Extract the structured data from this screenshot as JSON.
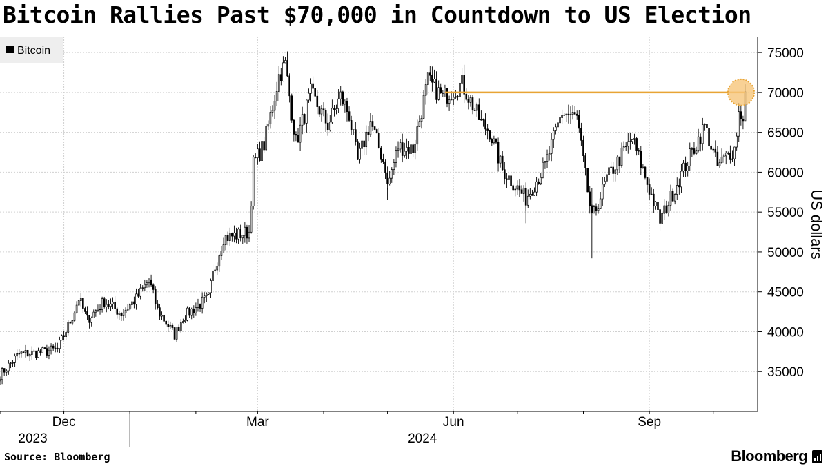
{
  "chart_data": {
    "type": "candlestick",
    "title": "Bitcoin Rallies Past $70,000 in Countdown to US Election",
    "legend": [
      "Bitcoin"
    ],
    "legend_placement": "top-left",
    "ylabel": "US dollars",
    "ylim": [
      30000,
      77000
    ],
    "yticks": [
      35000,
      40000,
      45000,
      50000,
      55000,
      60000,
      65000,
      70000,
      75000
    ],
    "y_axis_position": "right",
    "grid": true,
    "x_range": [
      "2023-11-01",
      "2024-10-16"
    ],
    "x_major_ticks": [
      {
        "date": "2023-12-01",
        "label": "Dec"
      },
      {
        "date": "2024-03-01",
        "label": "Mar"
      },
      {
        "date": "2024-06-01",
        "label": "Jun"
      },
      {
        "date": "2024-09-01",
        "label": "Sep"
      }
    ],
    "x_year_labels": [
      {
        "date": "2023-12-01",
        "label": "2023"
      },
      {
        "date": "2024-06-01",
        "label": "2024"
      }
    ],
    "x_year_divider": "2024-01-01",
    "anchors": [
      [
        "2023-11-01",
        34600
      ],
      [
        "2023-11-10",
        37200
      ],
      [
        "2023-11-20",
        37400
      ],
      [
        "2023-11-28",
        37800
      ],
      [
        "2023-12-05",
        41900
      ],
      [
        "2023-12-08",
        44200
      ],
      [
        "2023-12-12",
        41500
      ],
      [
        "2023-12-20",
        43800
      ],
      [
        "2023-12-28",
        42300
      ],
      [
        "2024-01-04",
        44100
      ],
      [
        "2024-01-10",
        46500
      ],
      [
        "2024-01-14",
        42700
      ],
      [
        "2024-01-22",
        39600
      ],
      [
        "2024-01-26",
        41800
      ],
      [
        "2024-02-01",
        43100
      ],
      [
        "2024-02-07",
        44300
      ],
      [
        "2024-02-09",
        47200
      ],
      [
        "2024-02-14",
        51800
      ],
      [
        "2024-02-20",
        52100
      ],
      [
        "2024-02-26",
        52500
      ],
      [
        "2024-02-28",
        61000
      ],
      [
        "2024-03-04",
        63500
      ],
      [
        "2024-03-08",
        68300
      ],
      [
        "2024-03-11",
        72100
      ],
      [
        "2024-03-14",
        73500
      ],
      [
        "2024-03-19",
        63700
      ],
      [
        "2024-03-26",
        69900
      ],
      [
        "2024-04-03",
        65900
      ],
      [
        "2024-04-09",
        69500
      ],
      [
        "2024-04-13",
        67200
      ],
      [
        "2024-04-17",
        61300
      ],
      [
        "2024-04-23",
        66400
      ],
      [
        "2024-04-30",
        60600
      ],
      [
        "2024-05-01",
        58200
      ],
      [
        "2024-05-06",
        63200
      ],
      [
        "2024-05-13",
        62900
      ],
      [
        "2024-05-20",
        71400
      ],
      [
        "2024-05-27",
        69400
      ],
      [
        "2024-06-05",
        71100
      ],
      [
        "2024-06-14",
        66200
      ],
      [
        "2024-06-18",
        65100
      ],
      [
        "2024-06-24",
        60300
      ],
      [
        "2024-07-05",
        56700
      ],
      [
        "2024-07-14",
        60800
      ],
      [
        "2024-07-22",
        67500
      ],
      [
        "2024-07-29",
        66800
      ],
      [
        "2024-08-05",
        54000
      ],
      [
        "2024-08-12",
        59200
      ],
      [
        "2024-08-24",
        64200
      ],
      [
        "2024-09-06",
        53900
      ],
      [
        "2024-09-17",
        60300
      ],
      [
        "2024-09-27",
        65800
      ],
      [
        "2024-10-03",
        60700
      ],
      [
        "2024-10-08",
        62200
      ],
      [
        "2024-10-11",
        62900
      ],
      [
        "2024-10-13",
        67400
      ],
      [
        "2024-10-15",
        67100
      ],
      [
        "2024-10-16",
        69800
      ]
    ],
    "annotation": {
      "type": "horizontal-line",
      "from": "2024-05-28",
      "to": "2024-10-16",
      "value": 70000,
      "color": "#e8a434",
      "marker": "circle at end"
    },
    "colors": {
      "candle": "#000000",
      "highlight_line": "#e8a434",
      "highlight_fill": "#f6c57a",
      "grid": "#d0d0d0"
    }
  },
  "source_text": "Source: Bloomberg",
  "brand": "Bloomberg"
}
